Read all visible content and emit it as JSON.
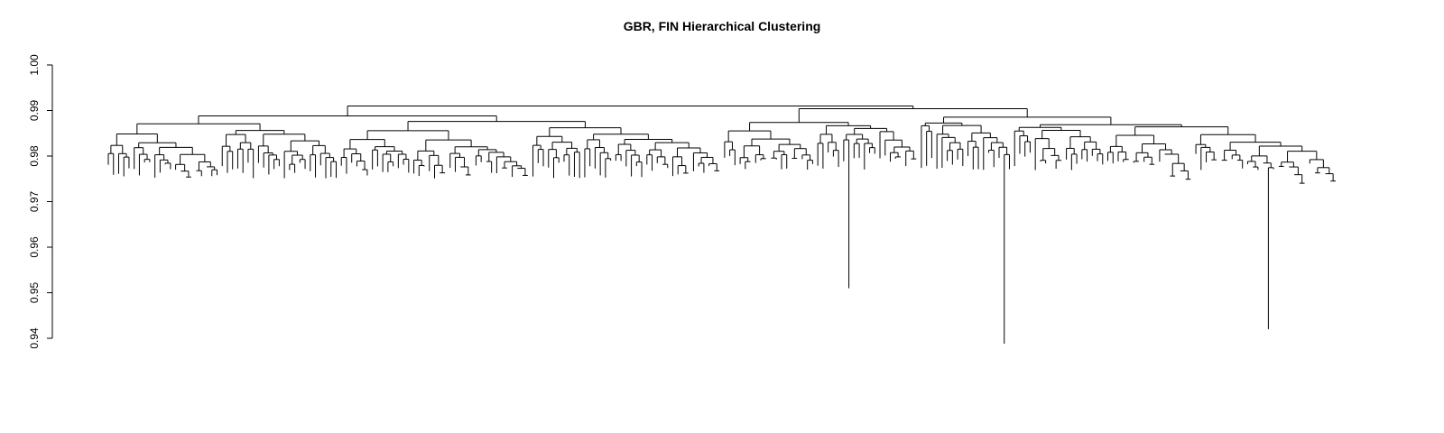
{
  "chart_data": {
    "type": "dendrogram",
    "title": "GBR, FIN Hierarchical Clustering",
    "xlabel": "",
    "ylabel": "",
    "ylim": [
      0.94,
      1.0
    ],
    "y_ticks": [
      0.94,
      0.95,
      0.96,
      0.97,
      0.98,
      0.99,
      1.0
    ],
    "y_tick_labels": [
      "0.94",
      "0.95",
      "0.96",
      "0.97",
      "0.98",
      "0.99",
      "1.00"
    ],
    "grid": false,
    "legend": "none",
    "groups": [
      {
        "label": "FIN",
        "color": "#000000",
        "leaf_count": 119,
        "merge_height": 0.9888
      },
      {
        "label": "GBR",
        "color": "#ff0000",
        "leaf_count": 119,
        "merge_height": 0.9904
      }
    ],
    "root_height": 0.991,
    "outliers": [
      {
        "label": "GBR",
        "leaf_height": 0.951,
        "merge_height": 0.9622
      },
      {
        "label": "GBR",
        "leaf_height": 0.9388,
        "merge_height": 0.9494
      },
      {
        "label": "GBR",
        "leaf_height": 0.942,
        "merge_height": 0.953
      }
    ]
  }
}
